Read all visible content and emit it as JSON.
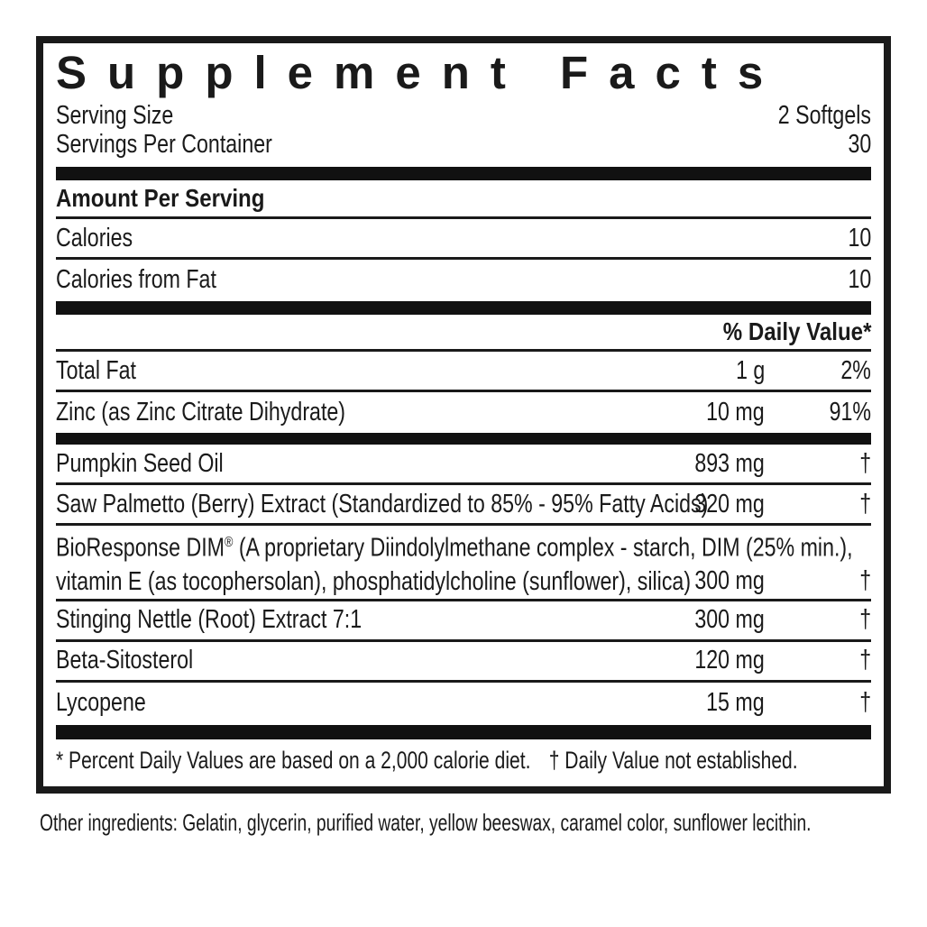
{
  "colors": {
    "ink": "#1a1a1a",
    "bar": "#111111",
    "background": "#ffffff"
  },
  "label": {
    "title": "Supplement Facts",
    "serving_size": {
      "label": "Serving Size",
      "value": "2 Softgels"
    },
    "servings_per_container": {
      "label": "Servings Per Container",
      "value": "30"
    },
    "amount_per_serving": "Amount Per Serving",
    "calories": {
      "label": "Calories",
      "value": "10"
    },
    "calories_from_fat": {
      "label": "Calories from Fat",
      "value": "10"
    },
    "daily_value_header": "% Daily Value*",
    "rows": [
      {
        "name": "Total Fat",
        "amount": "1 g",
        "dv": "2%"
      },
      {
        "name": "Zinc (as Zinc Citrate Dihydrate)",
        "amount": "10 mg",
        "dv": "91%"
      },
      {
        "name": "Pumpkin Seed Oil",
        "amount": "893 mg",
        "dv": "†"
      },
      {
        "name": "Saw Palmetto (Berry) Extract (Standardized to 85% - 95% Fatty Acids)",
        "amount": "320 mg",
        "dv": "†"
      },
      {
        "brand": "BioResponse DIM",
        "reg": "®",
        "line1_rest": " (A proprietary Diindolylmethane complex - starch, DIM (25% min.),",
        "line2": "vitamin E (as tocophersolan), phosphatidylcholine (sunflower), silica)",
        "amount": "300 mg",
        "dv": "†"
      },
      {
        "name": "Stinging Nettle (Root) Extract 7:1",
        "amount": "300 mg",
        "dv": "†"
      },
      {
        "name": "Beta-Sitosterol",
        "amount": "120 mg",
        "dv": "†"
      },
      {
        "name": "Lycopene",
        "amount": "15 mg",
        "dv": "†"
      }
    ],
    "footnote_dv": "* Percent Daily Values are based on a 2,000 calorie diet.",
    "footnote_dagger": "† Daily Value not established.",
    "other_ingredients": "Other ingredients: Gelatin, glycerin, purified water, yellow beeswax, caramel color, sunflower lecithin."
  }
}
